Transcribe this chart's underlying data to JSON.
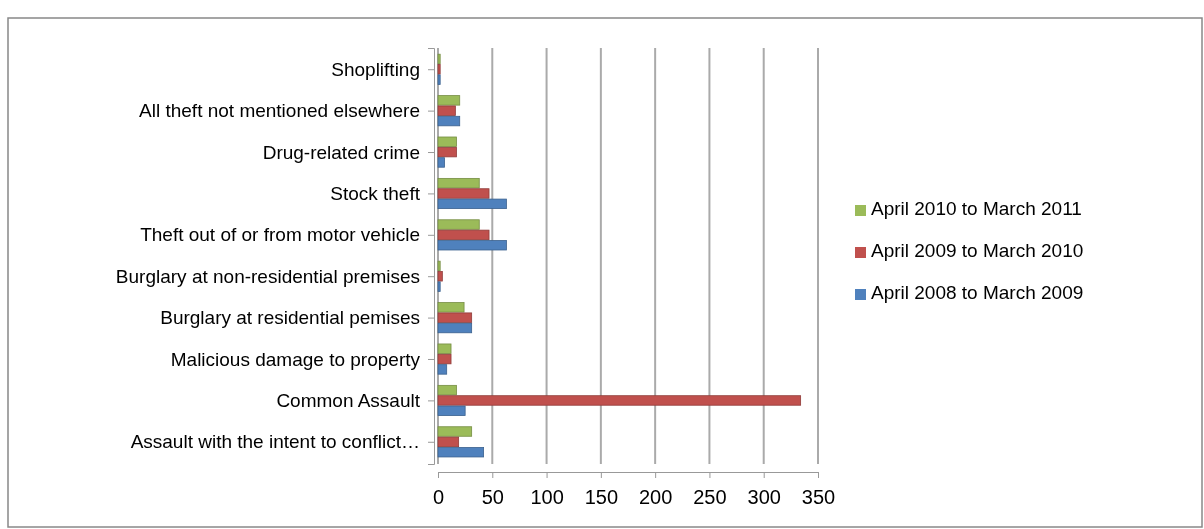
{
  "chart_data": {
    "type": "bar",
    "orientation": "horizontal",
    "categories": [
      "Shoplifting",
      "All theft not mentioned elsewhere",
      "Drug-related crime",
      "Stock theft",
      "Theft out of or from motor vehicle",
      "Burglary at non-residential premises",
      "Burglary at residential pemises",
      "Malicious damage to property",
      "Common Assault",
      "Assault with the intent to conflict…"
    ],
    "series": [
      {
        "name": "April 2010 to March 2011",
        "color": "#9bbb59",
        "values": [
          2,
          20,
          17,
          38,
          38,
          2,
          24,
          12,
          17,
          31
        ]
      },
      {
        "name": "April 2009 to March 2010",
        "color": "#c0504d",
        "values": [
          2,
          16,
          17,
          47,
          47,
          4,
          31,
          12,
          334,
          19
        ]
      },
      {
        "name": "April 2008 to March 2009",
        "color": "#4f81bd",
        "values": [
          2,
          20,
          6,
          63,
          63,
          2,
          31,
          8,
          25,
          42
        ]
      }
    ],
    "xlim": [
      0,
      350
    ],
    "xticks": [
      0,
      50,
      100,
      150,
      200,
      250,
      300,
      350
    ],
    "grid": "x",
    "legend": "right"
  }
}
